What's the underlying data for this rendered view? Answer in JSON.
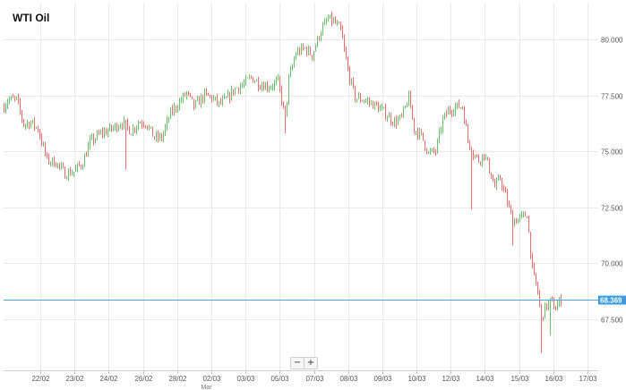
{
  "chart_data": {
    "type": "candlestick",
    "title": "WTI Oil",
    "y_ticks": [
      "80.000",
      "77.500",
      "75.000",
      "72.500",
      "70.000",
      "67.500"
    ],
    "ylim": [
      65.6,
      81.4
    ],
    "x_labels": [
      "22/02",
      "23/02",
      "24/02",
      "26/02",
      "28/02",
      "02/03",
      "03/03",
      "05/03",
      "07/03",
      "08/03",
      "09/03",
      "10/03",
      "12/03",
      "14/03",
      "15/03",
      "16/03",
      "17/03"
    ],
    "x_sublabel": {
      "under": "28/02",
      "text": "Mar"
    },
    "current_price": {
      "label": "68.369",
      "value": 68.369
    },
    "grid": true,
    "colors": {
      "up": "#69c16d",
      "down": "#ef6b6b",
      "price_line": "#4aa8e8",
      "price_label_bg": "#3d9de0",
      "grid": "#e9e9e9"
    },
    "anchors": [
      [
        0,
        76.7
      ],
      [
        8,
        77.3
      ],
      [
        18,
        77.3
      ],
      [
        26,
        76.2
      ],
      [
        34,
        76.3
      ],
      [
        42,
        76.0
      ],
      [
        52,
        74.6
      ],
      [
        62,
        74.5
      ],
      [
        72,
        74.0
      ],
      [
        82,
        74.1
      ],
      [
        92,
        74.5
      ],
      [
        100,
        75.4
      ],
      [
        112,
        75.8
      ],
      [
        124,
        76.0
      ],
      [
        136,
        76.3
      ],
      [
        146,
        75.9
      ],
      [
        154,
        76.3
      ],
      [
        162,
        76.3
      ],
      [
        172,
        75.6
      ],
      [
        180,
        75.6
      ],
      [
        190,
        76.7
      ],
      [
        200,
        77.2
      ],
      [
        208,
        77.6
      ],
      [
        216,
        77.0
      ],
      [
        228,
        77.5
      ],
      [
        236,
        77.4
      ],
      [
        244,
        77.1
      ],
      [
        252,
        77.3
      ],
      [
        262,
        77.8
      ],
      [
        272,
        78.0
      ],
      [
        280,
        78.3
      ],
      [
        290,
        78.0
      ],
      [
        300,
        77.9
      ],
      [
        310,
        78.1
      ],
      [
        318,
        76.5
      ],
      [
        322,
        78.2
      ],
      [
        330,
        79.4
      ],
      [
        340,
        79.6
      ],
      [
        348,
        79.3
      ],
      [
        358,
        80.4
      ],
      [
        366,
        80.9
      ],
      [
        372,
        80.8
      ],
      [
        380,
        80.4
      ],
      [
        388,
        78.6
      ],
      [
        396,
        77.4
      ],
      [
        406,
        77.3
      ],
      [
        416,
        77.1
      ],
      [
        424,
        76.9
      ],
      [
        432,
        76.6
      ],
      [
        440,
        76.3
      ],
      [
        448,
        76.5
      ],
      [
        456,
        77.4
      ],
      [
        462,
        76.0
      ],
      [
        470,
        75.7
      ],
      [
        478,
        74.9
      ],
      [
        486,
        75.0
      ],
      [
        494,
        76.4
      ],
      [
        500,
        76.8
      ],
      [
        508,
        77.0
      ],
      [
        516,
        77.0
      ],
      [
        522,
        75.5
      ],
      [
        528,
        74.9
      ],
      [
        534,
        74.6
      ],
      [
        540,
        74.9
      ],
      [
        546,
        74.2
      ],
      [
        552,
        73.4
      ],
      [
        558,
        73.8
      ],
      [
        564,
        73.0
      ],
      [
        572,
        71.9
      ],
      [
        580,
        72.0
      ],
      [
        588,
        72.2
      ],
      [
        594,
        69.7
      ],
      [
        600,
        68.7
      ],
      [
        604,
        67.5
      ],
      [
        608,
        68.0
      ],
      [
        614,
        68.3
      ],
      [
        620,
        68.0
      ],
      [
        626,
        68.4
      ]
    ],
    "spikes": [
      {
        "x": 140,
        "low": 74.2
      },
      {
        "x": 318,
        "low": 75.8
      },
      {
        "x": 526,
        "low": 72.4
      },
      {
        "x": 572,
        "low": 70.8
      },
      {
        "x": 604,
        "low": 66.0
      },
      {
        "x": 614,
        "low": 66.8
      }
    ]
  },
  "zoom": {
    "minus": "−",
    "plus": "+"
  }
}
